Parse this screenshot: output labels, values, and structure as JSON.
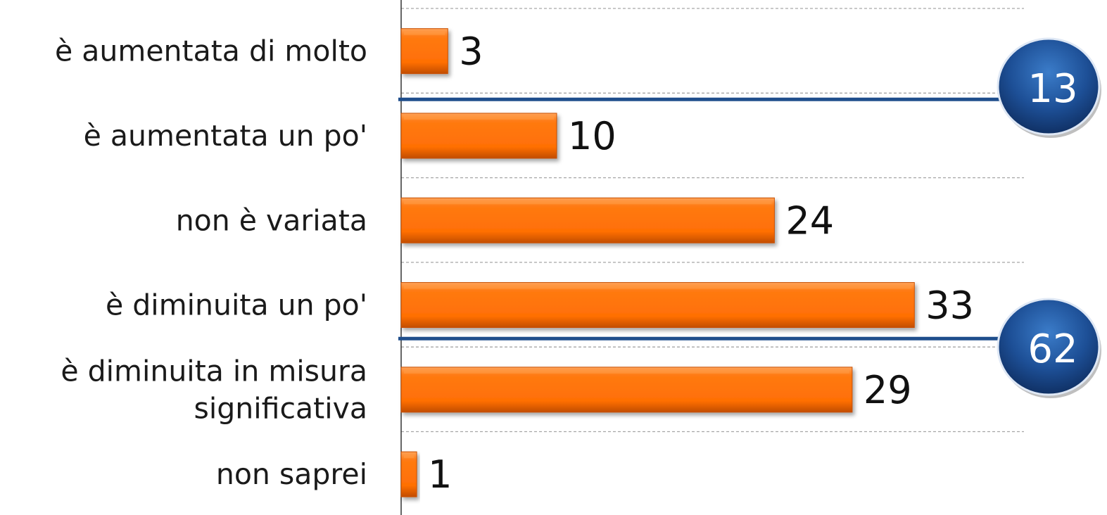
{
  "chart_data": {
    "type": "bar",
    "orientation": "horizontal",
    "categories": [
      "è aumentata di molto",
      "è aumentata un po'",
      "non è variata",
      "è diminuita un po'",
      "è diminuita in misura significativa",
      "non saprei"
    ],
    "category_lines": [
      [
        "è aumentata di molto"
      ],
      [
        "è aumentata un po'"
      ],
      [
        "non è variata"
      ],
      [
        "è diminuita un po'"
      ],
      [
        "è diminuita in misura",
        "significativa"
      ],
      [
        "non saprei"
      ]
    ],
    "values": [
      3,
      10,
      24,
      33,
      29,
      1
    ],
    "xlim": [
      0,
      40
    ],
    "grid": true,
    "legend": "none",
    "groups": [
      {
        "categories": [
          "è aumentata di molto",
          "è aumentata un po'"
        ],
        "total": 13
      },
      {
        "categories": [
          "è diminuita un po'",
          "è diminuita in misura significativa"
        ],
        "total": 62
      }
    ],
    "colors": {
      "bar": "#ff7108",
      "bar_dark": "#c84f00",
      "bar_light": "#ff9a44",
      "group_line": "#1f4e8c",
      "badge": "#1c4f94",
      "badge_dark": "#0f2f63",
      "grid": "#a6a6a6",
      "axis": "#333333"
    }
  }
}
